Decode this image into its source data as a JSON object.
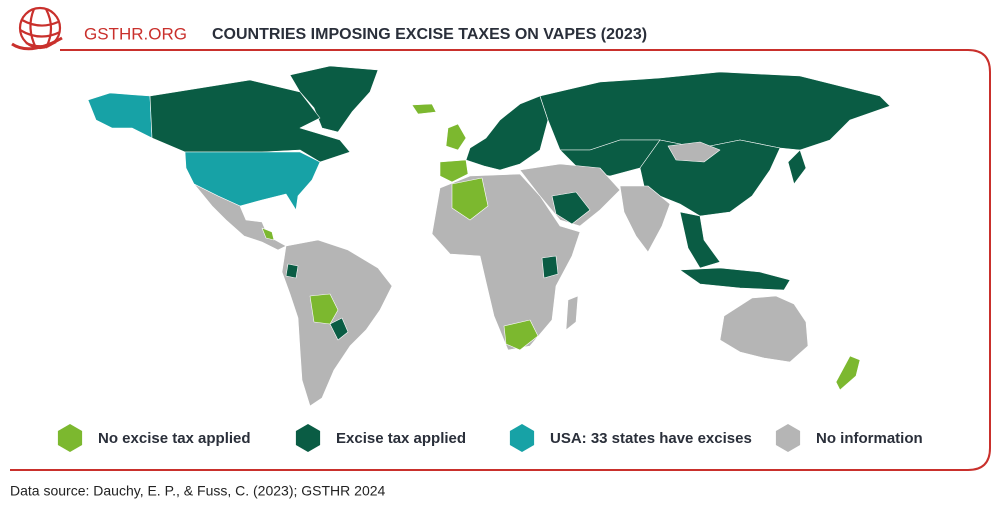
{
  "header": {
    "logo_text": "GSTHR.ORG",
    "title": "COUNTRIES IMPOSING EXCISE TAXES ON VAPES (2023)"
  },
  "legend": [
    {
      "label": "No excise tax applied",
      "color": "#7cb82f"
    },
    {
      "label": "Excise tax applied",
      "color": "#0a5c44"
    },
    {
      "label": "USA: 33 states have excises",
      "color": "#17a2a6"
    },
    {
      "label": "No information",
      "color": "#b5b5b5"
    }
  ],
  "source": "Data source: Dauchy, E. P., & Fuss, C. (2023); GSTHR 2024"
}
